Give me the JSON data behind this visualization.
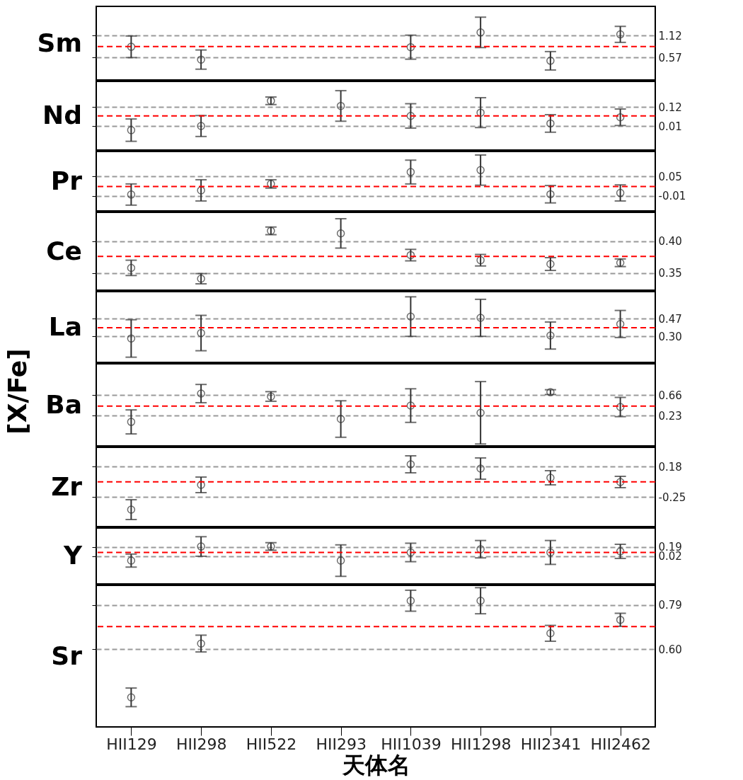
{
  "chart_data": [
    {
      "type": "scatter",
      "ylabel": "Sm",
      "annotations": [
        "[X/Fe]"
      ],
      "tick_labels": "y",
      "grid": "y",
      "marker": "circle",
      "ylim": [
        0.01,
        1.85
      ],
      "yticks": [
        {
          "value": 0.57,
          "label": "0.57"
        },
        {
          "value": 1.12,
          "label": "1.12"
        }
      ],
      "ref_lines": [
        {
          "axis": "y",
          "value": 0.845,
          "color": "#ff0000",
          "line_style": "dashed"
        }
      ],
      "series": [
        {
          "color": "#333333",
          "values": [
            0.84,
            0.52,
            null,
            null,
            0.83,
            1.2,
            0.49,
            1.15
          ],
          "errors": [
            0.27,
            0.24,
            null,
            null,
            0.3,
            0.38,
            0.23,
            0.2
          ]
        }
      ]
    },
    {
      "type": "scatter",
      "ylabel": "Nd",
      "tick_labels": "y",
      "grid": "y",
      "marker": "circle",
      "ylim": [
        -0.13,
        0.27
      ],
      "yticks": [
        {
          "value": 0.01,
          "label": "0.01"
        },
        {
          "value": 0.12,
          "label": "0.12"
        }
      ],
      "ref_lines": [
        {
          "axis": "y",
          "value": 0.069,
          "color": "#ff0000",
          "line_style": "dashed"
        }
      ],
      "series": [
        {
          "color": "#333333",
          "values": [
            -0.014,
            0.01,
            0.157,
            0.127,
            0.069,
            0.088,
            0.025,
            0.061
          ],
          "errors": [
            0.065,
            0.061,
            0.022,
            0.089,
            0.071,
            0.087,
            0.051,
            0.048
          ]
        }
      ]
    },
    {
      "type": "scatter",
      "ylabel": "Pr",
      "tick_labels": "y",
      "grid": "y",
      "marker": "circle",
      "ylim": [
        -0.057,
        0.128
      ],
      "yticks": [
        {
          "value": -0.01,
          "label": "-0.01"
        },
        {
          "value": 0.05,
          "label": "0.05"
        }
      ],
      "ref_lines": [
        {
          "axis": "y",
          "value": 0.019,
          "color": "#ff0000",
          "line_style": "dashed"
        }
      ],
      "series": [
        {
          "color": "#333333",
          "values": [
            -0.006,
            0.007,
            0.027,
            null,
            0.064,
            0.07,
            -0.005,
            -0.001
          ],
          "errors": [
            0.033,
            0.033,
            0.013,
            null,
            0.037,
            0.047,
            0.027,
            0.025
          ]
        }
      ]
    },
    {
      "type": "scatter",
      "ylabel": "Ce",
      "tick_labels": "y",
      "grid": "y",
      "marker": "circle",
      "ylim": [
        0.323,
        0.445
      ],
      "yticks": [
        {
          "value": 0.35,
          "label": "0.35"
        },
        {
          "value": 0.4,
          "label": "0.40"
        }
      ],
      "ref_lines": [
        {
          "axis": "y",
          "value": 0.376,
          "color": "#ff0000",
          "line_style": "dashed"
        }
      ],
      "series": [
        {
          "color": "#333333",
          "values": [
            0.358,
            0.341,
            0.416,
            0.412,
            0.378,
            0.37,
            0.364,
            0.366
          ],
          "errors": [
            0.012,
            0.008,
            0.006,
            0.023,
            0.009,
            0.009,
            0.01,
            0.006
          ]
        }
      ]
    },
    {
      "type": "scatter",
      "ylabel": "La",
      "tick_labels": "y",
      "grid": "y",
      "marker": "circle",
      "ylim": [
        0.05,
        0.73
      ],
      "yticks": [
        {
          "value": 0.3,
          "label": "0.30"
        },
        {
          "value": 0.47,
          "label": "0.47"
        }
      ],
      "ref_lines": [
        {
          "axis": "y",
          "value": 0.383,
          "color": "#ff0000",
          "line_style": "dashed"
        }
      ],
      "series": [
        {
          "color": "#333333",
          "values": [
            0.28,
            0.332,
            null,
            null,
            0.49,
            0.478,
            0.308,
            0.419
          ],
          "errors": [
            0.18,
            0.17,
            null,
            null,
            0.19,
            0.178,
            0.13,
            0.13
          ]
        }
      ]
    },
    {
      "type": "scatter",
      "ylabel": "Ba",
      "tick_labels": "y",
      "grid": "y",
      "marker": "circle",
      "ylim": [
        -0.4,
        1.31
      ],
      "yticks": [
        {
          "value": 0.23,
          "label": "0.23"
        },
        {
          "value": 0.66,
          "label": "0.66"
        }
      ],
      "ref_lines": [
        {
          "axis": "y",
          "value": 0.429,
          "color": "#ff0000",
          "line_style": "dashed"
        }
      ],
      "series": [
        {
          "color": "#333333",
          "values": [
            0.1,
            0.69,
            0.63,
            0.16,
            0.44,
            0.29,
            0.72,
            0.41
          ],
          "errors": [
            0.25,
            0.19,
            0.1,
            0.38,
            0.35,
            0.65,
            0.05,
            0.2
          ]
        }
      ]
    },
    {
      "type": "scatter",
      "ylabel": "Zr",
      "tick_labels": "y",
      "grid": "y",
      "marker": "circle",
      "ylim": [
        -0.67,
        0.45
      ],
      "yticks": [
        {
          "value": -0.25,
          "label": "-0.25"
        },
        {
          "value": 0.18,
          "label": "0.18"
        }
      ],
      "ref_lines": [
        {
          "axis": "y",
          "value": -0.038,
          "color": "#ff0000",
          "line_style": "dashed"
        }
      ],
      "series": [
        {
          "color": "#333333",
          "values": [
            -0.43,
            -0.08,
            null,
            null,
            0.21,
            0.15,
            0.02,
            -0.04
          ],
          "errors": [
            0.14,
            0.11,
            null,
            null,
            0.12,
            0.15,
            0.1,
            0.08
          ]
        }
      ]
    },
    {
      "type": "scatter",
      "ylabel": "Y",
      "tick_labels": "y",
      "grid": "y",
      "marker": "circle",
      "ylim": [
        -0.49,
        0.54
      ],
      "yticks": [
        {
          "value": 0.02,
          "label": "0.02"
        },
        {
          "value": 0.19,
          "label": "0.19"
        }
      ],
      "ref_lines": [
        {
          "axis": "y",
          "value": 0.089,
          "color": "#ff0000",
          "line_style": "dashed"
        }
      ],
      "series": [
        {
          "color": "#333333",
          "values": [
            -0.06,
            0.2,
            0.2,
            -0.06,
            0.09,
            0.15,
            0.09,
            0.11
          ],
          "errors": [
            0.12,
            0.18,
            0.07,
            0.29,
            0.17,
            0.16,
            0.22,
            0.13
          ]
        }
      ]
    },
    {
      "type": "scatter",
      "ylabel": "Sr",
      "xlabel": "天体名",
      "categories": [
        "HII129",
        "HII298",
        "HII522",
        "HII293",
        "HII1039",
        "HII1298",
        "HII2341",
        "HII2462"
      ],
      "grid": "y",
      "marker": "circle",
      "ylim": [
        0.266,
        0.874
      ],
      "yticks": [
        {
          "value": 0.6,
          "label": "0.60"
        },
        {
          "value": 0.79,
          "label": "0.79"
        }
      ],
      "ref_lines": [
        {
          "axis": "y",
          "value": 0.697,
          "color": "#ff0000",
          "line_style": "dashed"
        }
      ],
      "series": [
        {
          "color": "#333333",
          "values": [
            0.393,
            0.624,
            null,
            null,
            0.808,
            0.808,
            0.668,
            0.726
          ],
          "errors": [
            0.04,
            0.036,
            null,
            null,
            0.045,
            0.056,
            0.034,
            0.028
          ]
        }
      ]
    }
  ]
}
